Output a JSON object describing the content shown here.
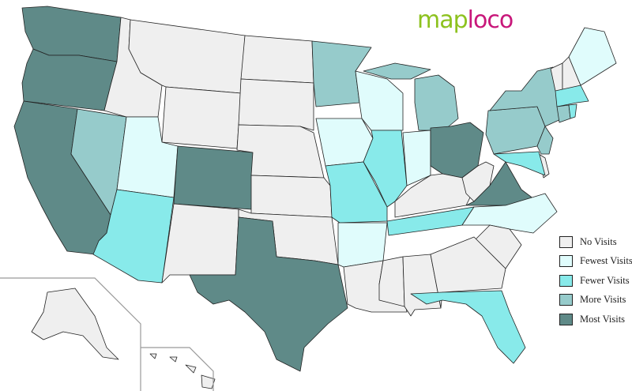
{
  "logo": {
    "part1": "map",
    "part2": "loco",
    "colors": {
      "map": "#8dc21f",
      "loco": "#c8177a"
    }
  },
  "legend": [
    {
      "key": "none",
      "label": "No Visits",
      "color": "#efefef"
    },
    {
      "key": "fewest",
      "label": "Fewest Visits",
      "color": "#e0fcfc"
    },
    {
      "key": "fewer",
      "label": "Fewer Visits",
      "color": "#88eaea"
    },
    {
      "key": "more",
      "label": "More Visits",
      "color": "#96cbcb"
    },
    {
      "key": "most",
      "label": "Most Visits",
      "color": "#5f8a88"
    }
  ],
  "states": {
    "WA": "most",
    "OR": "most",
    "CA": "most",
    "NV": "more",
    "ID": "none",
    "MT": "none",
    "WY": "none",
    "UT": "fewest",
    "CO": "most",
    "AZ": "fewer",
    "NM": "none",
    "ND": "none",
    "SD": "none",
    "NE": "none",
    "KS": "none",
    "OK": "none",
    "TX": "most",
    "MN": "more",
    "IA": "fewest",
    "WI": "fewest",
    "MI": "more",
    "IL": "fewer",
    "IN": "fewest",
    "OH": "most",
    "MO": "fewer",
    "AR": "fewest",
    "LA": "none",
    "MS": "none",
    "AL": "none",
    "TN": "fewer",
    "KY": "none",
    "WV": "none",
    "VA": "most",
    "NC": "fewest",
    "SC": "none",
    "GA": "none",
    "FL": "fewer",
    "PA": "more",
    "NY": "more",
    "NJ": "more",
    "DE": "none",
    "MD": "fewer",
    "VT": "none",
    "NH": "none",
    "ME": "fewest",
    "MA": "fewer",
    "CT": "more",
    "RI": "fewer",
    "AK": "none",
    "HI": "none"
  }
}
